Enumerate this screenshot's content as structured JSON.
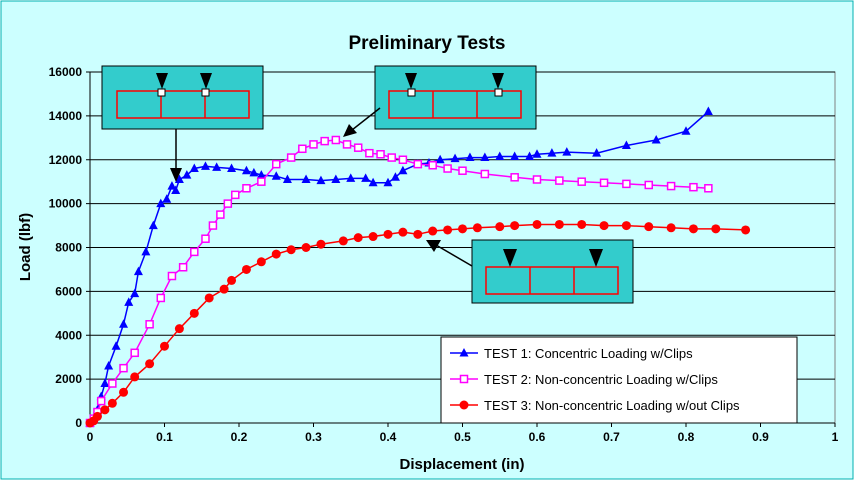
{
  "chart_data": {
    "type": "line",
    "title": "Preliminary Tests",
    "xlabel": "Displacement (in)",
    "ylabel": "Load (lbf)",
    "xlim": [
      0,
      1
    ],
    "ylim": [
      0,
      16000
    ],
    "x_ticks": [
      "0",
      "0.1",
      "0.2",
      "0.3",
      "0.4",
      "0.5",
      "0.6",
      "0.7",
      "0.8",
      "0.9",
      "1"
    ],
    "y_ticks": [
      "0",
      "2000",
      "4000",
      "6000",
      "8000",
      "10000",
      "12000",
      "14000",
      "16000"
    ],
    "grid": "horizontal",
    "legend_position": "bottom-right",
    "colors": {
      "background": "#ccffff",
      "plot_area": "#ccffff",
      "border": "#00b0b0",
      "diagram_box": "#33cccc",
      "beam": "#ff0000"
    },
    "series": [
      {
        "name": "TEST 1: Concentric Loading w/Clips",
        "color": "#0000ff",
        "marker": "triangle",
        "points": [
          [
            0,
            0
          ],
          [
            0.005,
            200
          ],
          [
            0.01,
            600
          ],
          [
            0.015,
            1200
          ],
          [
            0.02,
            1800
          ],
          [
            0.025,
            2600
          ],
          [
            0.035,
            3500
          ],
          [
            0.045,
            4500
          ],
          [
            0.052,
            5500
          ],
          [
            0.06,
            5900
          ],
          [
            0.065,
            6900
          ],
          [
            0.075,
            7800
          ],
          [
            0.085,
            9000
          ],
          [
            0.095,
            10000
          ],
          [
            0.103,
            10200
          ],
          [
            0.11,
            10800
          ],
          [
            0.115,
            10600
          ],
          [
            0.12,
            11100
          ],
          [
            0.13,
            11300
          ],
          [
            0.14,
            11600
          ],
          [
            0.155,
            11700
          ],
          [
            0.17,
            11650
          ],
          [
            0.19,
            11600
          ],
          [
            0.21,
            11500
          ],
          [
            0.22,
            11400
          ],
          [
            0.23,
            11300
          ],
          [
            0.25,
            11250
          ],
          [
            0.265,
            11100
          ],
          [
            0.29,
            11100
          ],
          [
            0.31,
            11050
          ],
          [
            0.33,
            11100
          ],
          [
            0.35,
            11150
          ],
          [
            0.37,
            11150
          ],
          [
            0.38,
            10950
          ],
          [
            0.4,
            10950
          ],
          [
            0.41,
            11200
          ],
          [
            0.42,
            11500
          ],
          [
            0.44,
            11800
          ],
          [
            0.455,
            11850
          ],
          [
            0.47,
            12000
          ],
          [
            0.49,
            12050
          ],
          [
            0.51,
            12100
          ],
          [
            0.53,
            12100
          ],
          [
            0.55,
            12150
          ],
          [
            0.57,
            12150
          ],
          [
            0.59,
            12150
          ],
          [
            0.6,
            12250
          ],
          [
            0.62,
            12300
          ],
          [
            0.64,
            12350
          ],
          [
            0.68,
            12300
          ],
          [
            0.72,
            12650
          ],
          [
            0.76,
            12900
          ],
          [
            0.8,
            13300
          ],
          [
            0.83,
            14200
          ]
        ]
      },
      {
        "name": "TEST 2: Non-concentric Loading w/Clips",
        "color": "#ff00ff",
        "marker": "square",
        "points": [
          [
            0,
            0
          ],
          [
            0.005,
            200
          ],
          [
            0.01,
            500
          ],
          [
            0.015,
            1000
          ],
          [
            0.03,
            1800
          ],
          [
            0.045,
            2500
          ],
          [
            0.06,
            3200
          ],
          [
            0.08,
            4500
          ],
          [
            0.095,
            5700
          ],
          [
            0.11,
            6700
          ],
          [
            0.125,
            7100
          ],
          [
            0.14,
            7800
          ],
          [
            0.155,
            8400
          ],
          [
            0.165,
            9000
          ],
          [
            0.175,
            9500
          ],
          [
            0.185,
            10000
          ],
          [
            0.195,
            10400
          ],
          [
            0.21,
            10700
          ],
          [
            0.23,
            11000
          ],
          [
            0.25,
            11800
          ],
          [
            0.27,
            12100
          ],
          [
            0.285,
            12500
          ],
          [
            0.3,
            12700
          ],
          [
            0.315,
            12850
          ],
          [
            0.33,
            12900
          ],
          [
            0.345,
            12700
          ],
          [
            0.36,
            12550
          ],
          [
            0.375,
            12300
          ],
          [
            0.39,
            12250
          ],
          [
            0.405,
            12100
          ],
          [
            0.42,
            12000
          ],
          [
            0.44,
            11800
          ],
          [
            0.46,
            11750
          ],
          [
            0.48,
            11600
          ],
          [
            0.5,
            11500
          ],
          [
            0.53,
            11350
          ],
          [
            0.57,
            11200
          ],
          [
            0.6,
            11100
          ],
          [
            0.63,
            11050
          ],
          [
            0.66,
            11000
          ],
          [
            0.69,
            10950
          ],
          [
            0.72,
            10900
          ],
          [
            0.75,
            10850
          ],
          [
            0.78,
            10800
          ],
          [
            0.81,
            10750
          ],
          [
            0.83,
            10700
          ]
        ]
      },
      {
        "name": "TEST 3: Non-concentric Loading w/out Clips",
        "color": "#ff0000",
        "marker": "circle",
        "points": [
          [
            0,
            0
          ],
          [
            0.005,
            100
          ],
          [
            0.01,
            300
          ],
          [
            0.02,
            600
          ],
          [
            0.03,
            900
          ],
          [
            0.045,
            1400
          ],
          [
            0.06,
            2100
          ],
          [
            0.08,
            2700
          ],
          [
            0.1,
            3500
          ],
          [
            0.12,
            4300
          ],
          [
            0.14,
            5000
          ],
          [
            0.16,
            5700
          ],
          [
            0.18,
            6100
          ],
          [
            0.19,
            6500
          ],
          [
            0.21,
            7000
          ],
          [
            0.23,
            7350
          ],
          [
            0.25,
            7700
          ],
          [
            0.27,
            7900
          ],
          [
            0.29,
            8000
          ],
          [
            0.31,
            8150
          ],
          [
            0.34,
            8300
          ],
          [
            0.36,
            8450
          ],
          [
            0.38,
            8500
          ],
          [
            0.4,
            8600
          ],
          [
            0.42,
            8700
          ],
          [
            0.44,
            8600
          ],
          [
            0.46,
            8750
          ],
          [
            0.48,
            8800
          ],
          [
            0.5,
            8850
          ],
          [
            0.52,
            8900
          ],
          [
            0.55,
            8950
          ],
          [
            0.57,
            9000
          ],
          [
            0.6,
            9050
          ],
          [
            0.63,
            9050
          ],
          [
            0.66,
            9050
          ],
          [
            0.69,
            9000
          ],
          [
            0.72,
            9000
          ],
          [
            0.75,
            8950
          ],
          [
            0.78,
            8900
          ],
          [
            0.81,
            8850
          ],
          [
            0.84,
            8850
          ],
          [
            0.88,
            8800
          ]
        ]
      }
    ]
  }
}
